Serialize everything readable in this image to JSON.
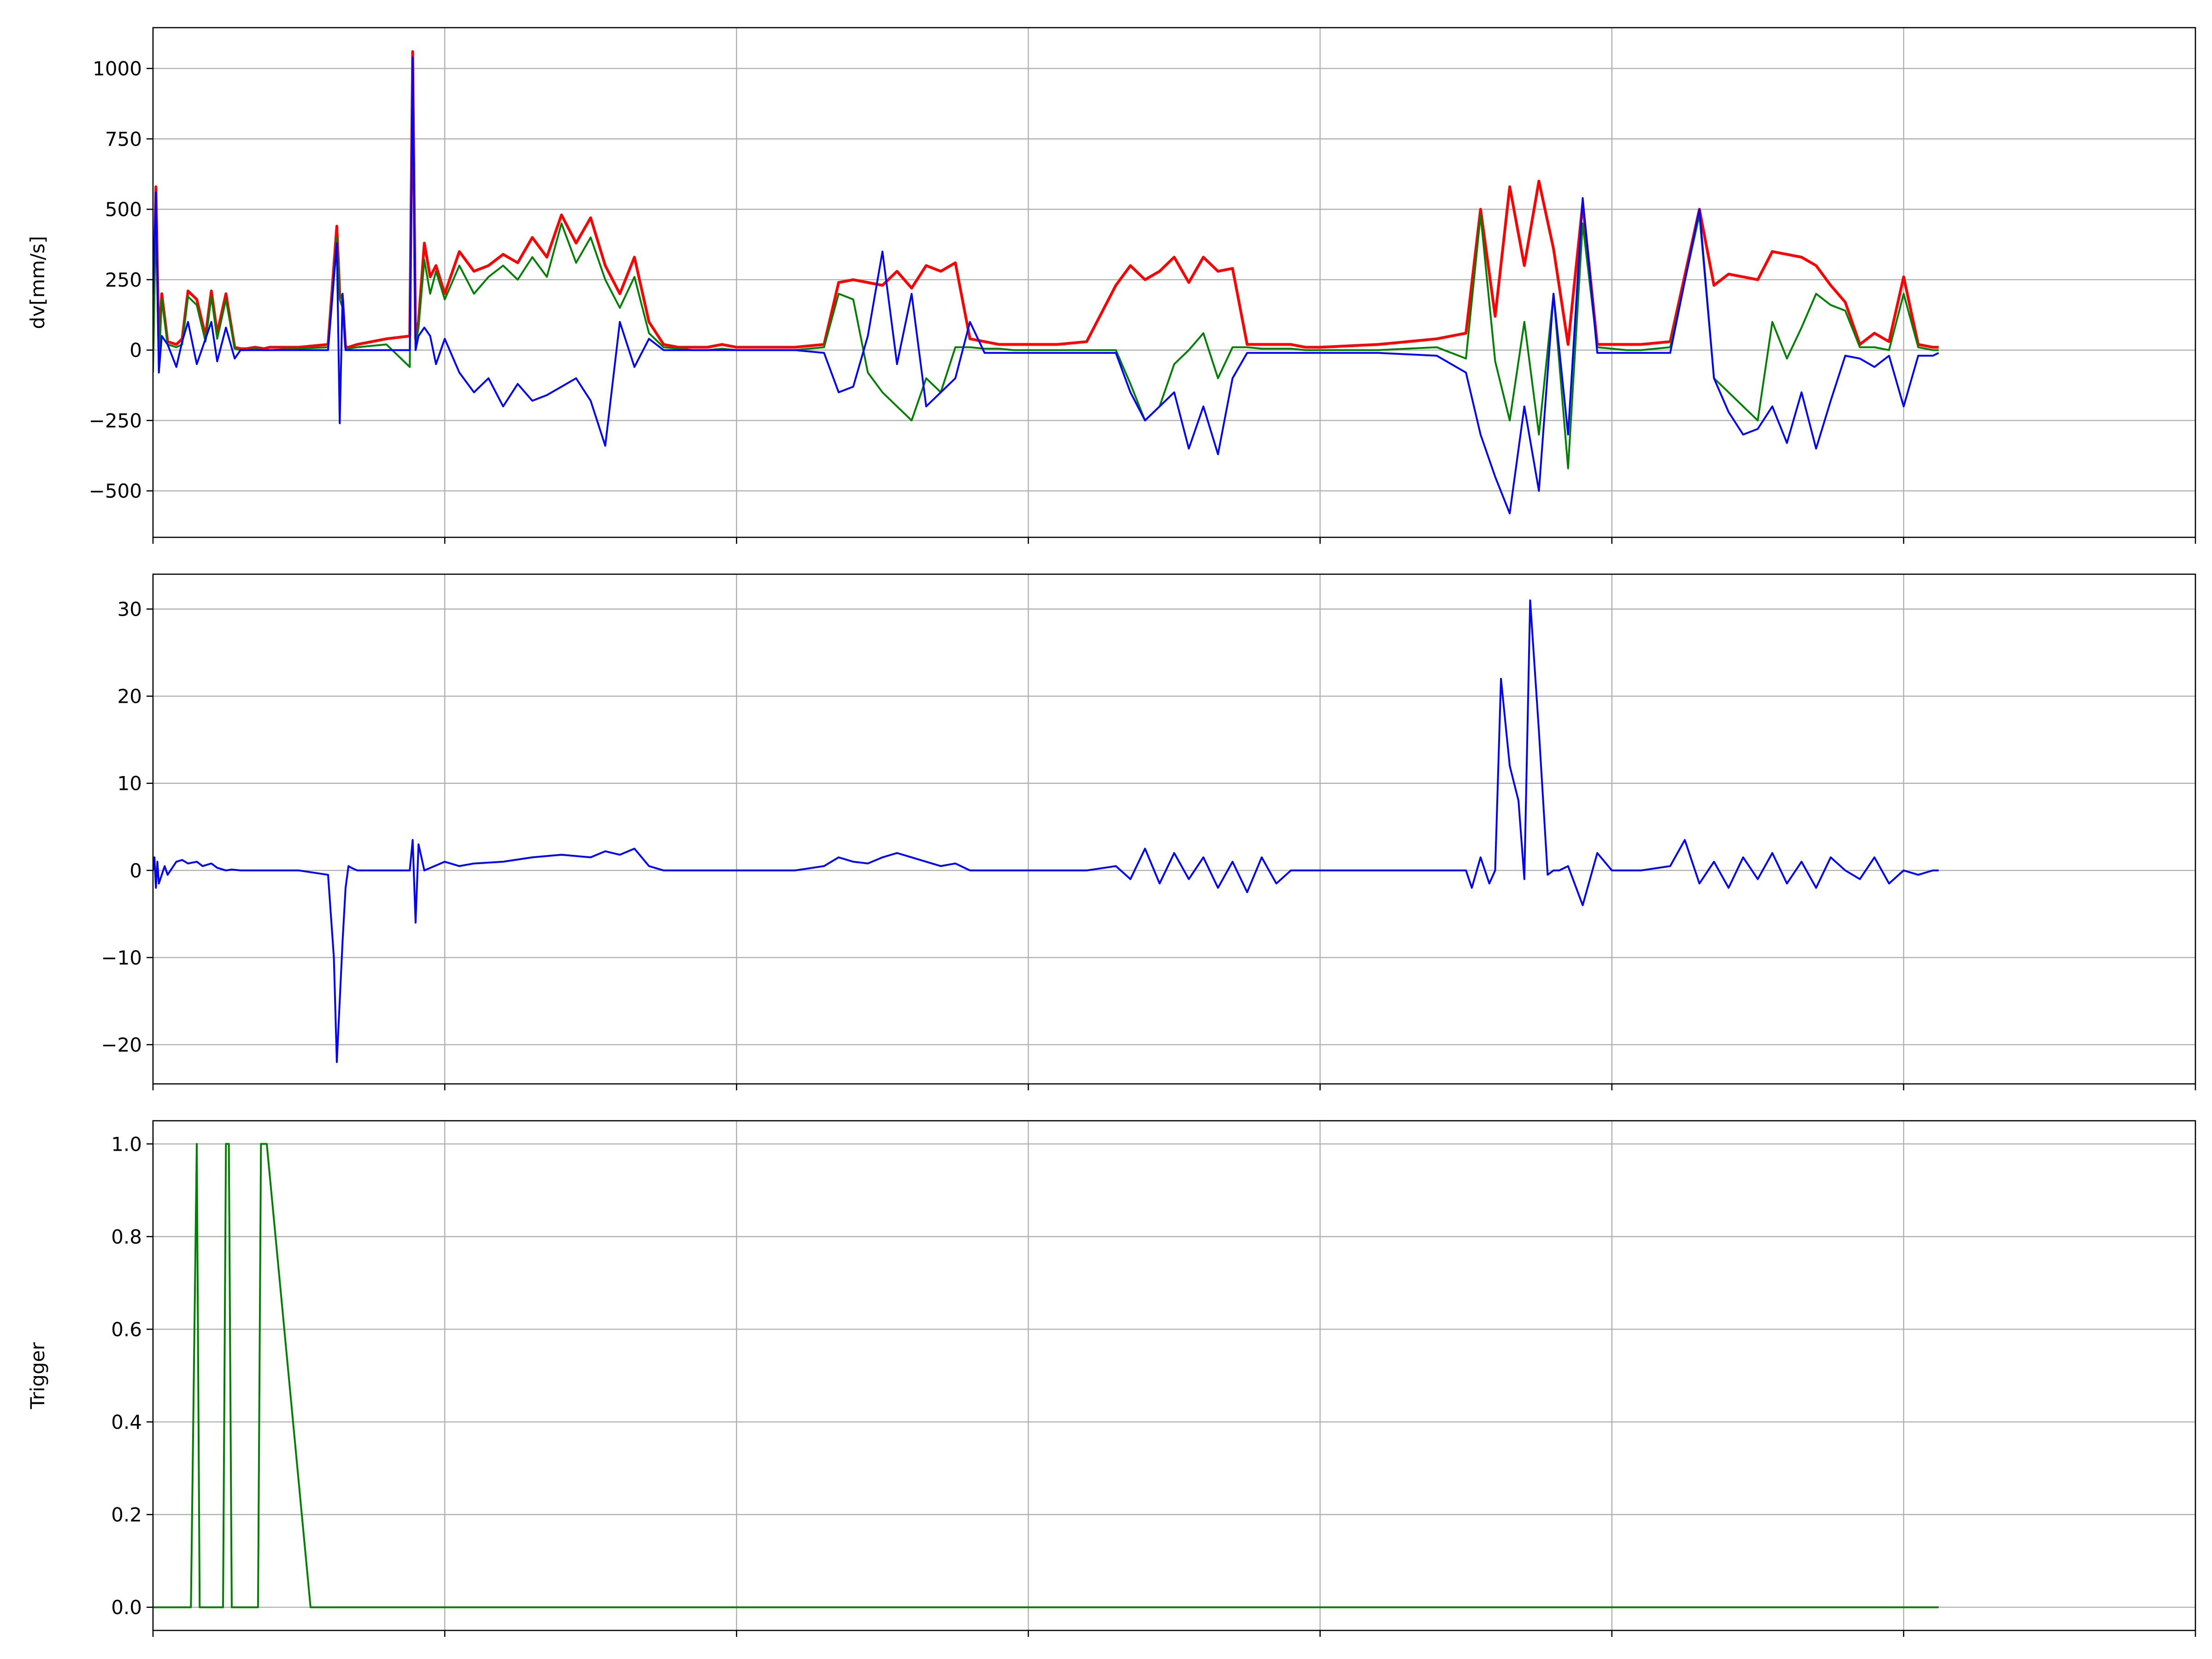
{
  "chart_data": [
    {
      "type": "line",
      "title": "",
      "xlabel": "",
      "ylabel": "dv[mm/s]",
      "xlim": [
        0,
        7
      ],
      "ylim": [
        -665,
        1145
      ],
      "yticks": [
        -500,
        -250,
        0,
        250,
        500,
        750,
        1000
      ],
      "ytick_labels": [
        "−500",
        "−250",
        "0",
        "250",
        "500",
        "750",
        "1000"
      ],
      "grid": true,
      "series": [
        {
          "color": "#ff0000",
          "x": [
            0.0,
            0.01,
            0.02,
            0.03,
            0.05,
            0.08,
            0.1,
            0.12,
            0.15,
            0.18,
            0.2,
            0.22,
            0.25,
            0.28,
            0.3,
            0.32,
            0.35,
            0.38,
            0.4,
            0.5,
            0.6,
            0.63,
            0.64,
            0.65,
            0.66,
            0.67,
            0.7,
            0.8,
            0.88,
            0.89,
            0.9,
            0.91,
            0.93,
            0.95,
            0.97,
            1.0,
            1.05,
            1.1,
            1.15,
            1.2,
            1.25,
            1.3,
            1.35,
            1.4,
            1.45,
            1.5,
            1.55,
            1.6,
            1.65,
            1.7,
            1.75,
            1.8,
            1.85,
            1.9,
            1.95,
            2.0,
            2.1,
            2.2,
            2.3,
            2.35,
            2.4,
            2.45,
            2.5,
            2.55,
            2.6,
            2.65,
            2.7,
            2.75,
            2.8,
            2.85,
            2.9,
            2.95,
            3.0,
            3.1,
            3.2,
            3.3,
            3.35,
            3.4,
            3.45,
            3.5,
            3.55,
            3.6,
            3.65,
            3.7,
            3.75,
            3.8,
            3.85,
            3.9,
            3.95,
            4.0,
            4.2,
            4.4,
            4.5,
            4.55,
            4.6,
            4.65,
            4.7,
            4.75,
            4.8,
            4.85,
            4.9,
            4.95,
            5.0,
            5.05,
            5.1,
            5.2,
            5.3,
            5.35,
            5.4,
            5.45,
            5.5,
            5.55,
            5.6,
            5.65,
            5.7,
            5.75,
            5.8,
            5.85,
            5.9,
            5.95,
            6.0,
            6.05,
            6.1,
            6.12
          ],
          "y": [
            0,
            580,
            10,
            200,
            30,
            20,
            40,
            210,
            180,
            50,
            210,
            60,
            200,
            10,
            5,
            5,
            10,
            5,
            10,
            10,
            20,
            440,
            200,
            180,
            10,
            10,
            20,
            40,
            50,
            1060,
            40,
            100,
            380,
            260,
            300,
            200,
            350,
            280,
            300,
            340,
            310,
            400,
            330,
            480,
            380,
            470,
            300,
            200,
            330,
            100,
            20,
            10,
            10,
            10,
            20,
            10,
            10,
            10,
            20,
            240,
            250,
            240,
            230,
            280,
            220,
            300,
            280,
            310,
            40,
            30,
            20,
            20,
            20,
            20,
            30,
            230,
            300,
            250,
            280,
            330,
            240,
            330,
            280,
            290,
            20,
            20,
            20,
            20,
            10,
            10,
            20,
            40,
            60,
            500,
            120,
            580,
            300,
            600,
            360,
            20,
            520,
            20,
            20,
            20,
            20,
            30,
            500,
            230,
            270,
            260,
            250,
            350,
            340,
            330,
            300,
            230,
            170,
            20,
            60,
            30,
            260,
            20,
            10,
            10
          ]
        },
        {
          "color": "#008000",
          "x": [
            0.0,
            0.01,
            0.02,
            0.03,
            0.05,
            0.08,
            0.1,
            0.12,
            0.15,
            0.18,
            0.2,
            0.22,
            0.25,
            0.28,
            0.3,
            0.32,
            0.35,
            0.38,
            0.4,
            0.5,
            0.6,
            0.63,
            0.64,
            0.65,
            0.66,
            0.67,
            0.7,
            0.8,
            0.88,
            0.89,
            0.9,
            0.91,
            0.93,
            0.95,
            0.97,
            1.0,
            1.05,
            1.1,
            1.15,
            1.2,
            1.25,
            1.3,
            1.35,
            1.4,
            1.45,
            1.5,
            1.55,
            1.6,
            1.65,
            1.7,
            1.75,
            1.8,
            1.85,
            1.9,
            1.95,
            2.0,
            2.1,
            2.2,
            2.3,
            2.35,
            2.4,
            2.45,
            2.5,
            2.55,
            2.6,
            2.65,
            2.7,
            2.75,
            2.8,
            2.85,
            2.9,
            2.95,
            3.0,
            3.1,
            3.2,
            3.3,
            3.35,
            3.4,
            3.45,
            3.5,
            3.55,
            3.6,
            3.65,
            3.7,
            3.75,
            3.8,
            3.85,
            3.9,
            3.95,
            4.0,
            4.2,
            4.4,
            4.5,
            4.55,
            4.6,
            4.65,
            4.7,
            4.75,
            4.8,
            4.85,
            4.9,
            4.95,
            5.0,
            5.05,
            5.1,
            5.2,
            5.3,
            5.35,
            5.4,
            5.45,
            5.5,
            5.55,
            5.6,
            5.65,
            5.7,
            5.75,
            5.8,
            5.85,
            5.9,
            5.95,
            6.0,
            6.05,
            6.1,
            6.12
          ],
          "y": [
            -80,
            500,
            -60,
            180,
            20,
            10,
            20,
            190,
            160,
            30,
            190,
            40,
            180,
            5,
            0,
            0,
            5,
            0,
            0,
            5,
            10,
            400,
            180,
            150,
            5,
            5,
            10,
            20,
            -60,
            1040,
            20,
            80,
            320,
            200,
            280,
            180,
            300,
            200,
            260,
            300,
            250,
            330,
            260,
            450,
            310,
            400,
            250,
            150,
            260,
            60,
            10,
            5,
            0,
            0,
            5,
            0,
            0,
            0,
            10,
            200,
            180,
            -80,
            -150,
            -200,
            -250,
            -100,
            -150,
            10,
            10,
            5,
            5,
            0,
            0,
            0,
            0,
            0,
            -120,
            -250,
            -200,
            -50,
            0,
            60,
            -100,
            10,
            10,
            5,
            5,
            5,
            0,
            0,
            0,
            10,
            -30,
            480,
            -40,
            -250,
            100,
            -300,
            200,
            -420,
            450,
            10,
            5,
            0,
            0,
            10,
            480,
            -100,
            -150,
            -200,
            -250,
            100,
            -30,
            80,
            200,
            160,
            140,
            10,
            10,
            0,
            200,
            10,
            0,
            0
          ]
        },
        {
          "color": "#0000ff",
          "x": [
            0.0,
            0.01,
            0.02,
            0.03,
            0.05,
            0.08,
            0.1,
            0.12,
            0.15,
            0.18,
            0.2,
            0.22,
            0.25,
            0.28,
            0.3,
            0.32,
            0.35,
            0.38,
            0.4,
            0.5,
            0.6,
            0.63,
            0.64,
            0.65,
            0.66,
            0.67,
            0.7,
            0.8,
            0.88,
            0.89,
            0.9,
            0.91,
            0.93,
            0.95,
            0.97,
            1.0,
            1.05,
            1.1,
            1.15,
            1.2,
            1.25,
            1.3,
            1.35,
            1.4,
            1.45,
            1.5,
            1.55,
            1.6,
            1.65,
            1.7,
            1.75,
            1.8,
            1.85,
            1.9,
            1.95,
            2.0,
            2.1,
            2.2,
            2.3,
            2.35,
            2.4,
            2.45,
            2.5,
            2.55,
            2.6,
            2.65,
            2.7,
            2.75,
            2.8,
            2.85,
            2.9,
            2.95,
            3.0,
            3.1,
            3.2,
            3.3,
            3.35,
            3.4,
            3.45,
            3.5,
            3.55,
            3.6,
            3.65,
            3.7,
            3.75,
            3.8,
            3.85,
            3.9,
            3.95,
            4.0,
            4.2,
            4.4,
            4.5,
            4.55,
            4.6,
            4.65,
            4.7,
            4.75,
            4.8,
            4.85,
            4.9,
            4.95,
            5.0,
            5.05,
            5.1,
            5.2,
            5.3,
            5.35,
            5.4,
            5.45,
            5.5,
            5.55,
            5.6,
            5.65,
            5.7,
            5.75,
            5.8,
            5.85,
            5.9,
            5.95,
            6.0,
            6.05,
            6.1,
            6.12
          ],
          "y": [
            200,
            560,
            -80,
            50,
            20,
            -60,
            30,
            100,
            -50,
            40,
            100,
            -40,
            80,
            -30,
            0,
            0,
            0,
            0,
            0,
            0,
            0,
            380,
            -260,
            200,
            0,
            0,
            0,
            0,
            0,
            1040,
            0,
            50,
            80,
            50,
            -50,
            40,
            -80,
            -150,
            -100,
            -200,
            -120,
            -180,
            -160,
            -130,
            -100,
            -180,
            -340,
            100,
            -60,
            40,
            0,
            0,
            0,
            0,
            0,
            0,
            0,
            0,
            -10,
            -150,
            -130,
            50,
            350,
            -50,
            200,
            -200,
            -150,
            -100,
            100,
            -10,
            -10,
            -10,
            -10,
            -10,
            -10,
            -10,
            -150,
            -250,
            -200,
            -150,
            -350,
            -200,
            -370,
            -100,
            -10,
            -10,
            -10,
            -10,
            -10,
            -10,
            -10,
            -20,
            -80,
            -300,
            -450,
            -580,
            -200,
            -500,
            200,
            -300,
            540,
            -10,
            -10,
            -10,
            -10,
            -10,
            500,
            -100,
            -220,
            -300,
            -280,
            -200,
            -330,
            -150,
            -350,
            -180,
            -20,
            -30,
            -60,
            -20,
            -200,
            -20,
            -20,
            -10
          ]
        }
      ]
    },
    {
      "type": "line",
      "title": "",
      "xlabel": "",
      "ylabel": "",
      "xlim": [
        0,
        7
      ],
      "ylim": [
        -24.5,
        34
      ],
      "yticks": [
        -20,
        -10,
        0,
        10,
        20,
        30
      ],
      "ytick_labels": [
        "−20",
        "−10",
        "0",
        "10",
        "20",
        "30"
      ],
      "grid": true,
      "series": [
        {
          "color": "#0000ff",
          "x": [
            0.0,
            0.005,
            0.01,
            0.015,
            0.02,
            0.04,
            0.05,
            0.08,
            0.1,
            0.12,
            0.15,
            0.17,
            0.2,
            0.22,
            0.25,
            0.27,
            0.3,
            0.35,
            0.4,
            0.5,
            0.6,
            0.62,
            0.63,
            0.64,
            0.65,
            0.66,
            0.67,
            0.68,
            0.7,
            0.8,
            0.88,
            0.89,
            0.9,
            0.91,
            0.93,
            1.0,
            1.05,
            1.1,
            1.2,
            1.3,
            1.4,
            1.5,
            1.55,
            1.6,
            1.65,
            1.7,
            1.75,
            1.8,
            1.9,
            2.0,
            2.2,
            2.3,
            2.35,
            2.4,
            2.45,
            2.5,
            2.55,
            2.6,
            2.65,
            2.7,
            2.75,
            2.8,
            2.85,
            2.9,
            3.0,
            3.1,
            3.2,
            3.3,
            3.35,
            3.4,
            3.45,
            3.5,
            3.55,
            3.6,
            3.65,
            3.7,
            3.75,
            3.8,
            3.85,
            3.9,
            4.0,
            4.2,
            4.4,
            4.5,
            4.52,
            4.55,
            4.58,
            4.6,
            4.62,
            4.65,
            4.68,
            4.7,
            4.72,
            4.75,
            4.78,
            4.8,
            4.82,
            4.85,
            4.9,
            4.95,
            5.0,
            5.1,
            5.2,
            5.25,
            5.3,
            5.35,
            5.4,
            5.45,
            5.5,
            5.55,
            5.6,
            5.65,
            5.7,
            5.75,
            5.8,
            5.85,
            5.9,
            5.95,
            6.0,
            6.05,
            6.1,
            6.12
          ],
          "y": [
            0,
            1.5,
            -2,
            1,
            -1.5,
            0.5,
            -0.5,
            1,
            1.2,
            0.8,
            1,
            0.5,
            0.8,
            0.3,
            0,
            0.1,
            0,
            0,
            0,
            0,
            -0.5,
            -10,
            -22,
            -15,
            -8,
            -2,
            0.5,
            0.3,
            0,
            0,
            0,
            3.5,
            -6,
            3,
            0,
            1,
            0.5,
            0.8,
            1,
            1.5,
            1.8,
            1.5,
            2.2,
            1.8,
            2.5,
            0.5,
            0,
            0,
            0,
            0,
            0,
            0.5,
            1.5,
            1,
            0.8,
            1.5,
            2,
            1.5,
            1,
            0.5,
            0.8,
            0,
            0,
            0,
            0,
            0,
            0,
            0.5,
            -1,
            2.5,
            -1.5,
            2,
            -1,
            1.5,
            -2,
            1,
            -2.5,
            1.5,
            -1.5,
            0,
            0,
            0,
            0,
            0,
            -2,
            1.5,
            -1.5,
            0,
            22,
            12,
            8,
            -1,
            31,
            16,
            -0.5,
            0,
            0,
            0.5,
            -4,
            2,
            0,
            0,
            0.5,
            3.5,
            -1.5,
            1,
            -2,
            1.5,
            -1,
            2,
            -1.5,
            1,
            -2,
            1.5,
            0,
            -1,
            1.5,
            -1.5,
            0,
            -0.5,
            0,
            0
          ]
        }
      ]
    },
    {
      "type": "line",
      "title": "",
      "xlabel": "",
      "ylabel": "Trigger",
      "xlim": [
        0,
        7
      ],
      "ylim": [
        -0.05,
        1.05
      ],
      "yticks": [
        0.0,
        0.2,
        0.4,
        0.6,
        0.8,
        1.0
      ],
      "ytick_labels": [
        "0.0",
        "0.2",
        "0.4",
        "0.6",
        "0.8",
        "1.0"
      ],
      "grid": true,
      "series": [
        {
          "color": "#008000",
          "x": [
            0.0,
            0.13,
            0.15,
            0.16,
            0.24,
            0.25,
            0.26,
            0.27,
            0.36,
            0.37,
            0.39,
            0.54,
            6.12
          ],
          "y": [
            0,
            0,
            1,
            0,
            0,
            1,
            1,
            0,
            0,
            1,
            1,
            0,
            0
          ]
        }
      ]
    }
  ]
}
